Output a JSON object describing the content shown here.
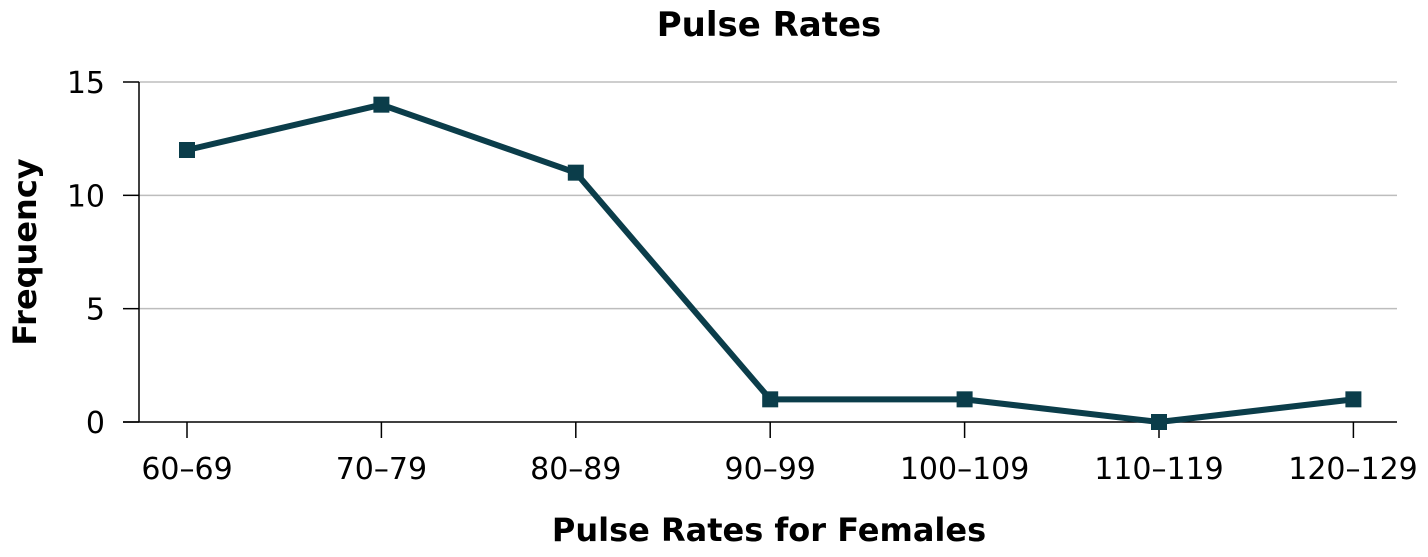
{
  "chart_data": {
    "type": "line",
    "title": "Pulse Rates",
    "xlabel": "Pulse Rates for Females",
    "ylabel": "Frequency",
    "categories": [
      "60–69",
      "70–79",
      "80–89",
      "90–99",
      "100–109",
      "110–119",
      "120–129"
    ],
    "series": [
      {
        "values": [
          12,
          14,
          11,
          1,
          1,
          0,
          1
        ]
      }
    ],
    "ylim": [
      0,
      15
    ],
    "yticks": [
      "0",
      "5",
      "10",
      "15"
    ],
    "grid": true,
    "legend": "none",
    "colors": {
      "line": "#0b3d4a",
      "grid": "#bdbdbd",
      "axis": "#000000"
    }
  }
}
